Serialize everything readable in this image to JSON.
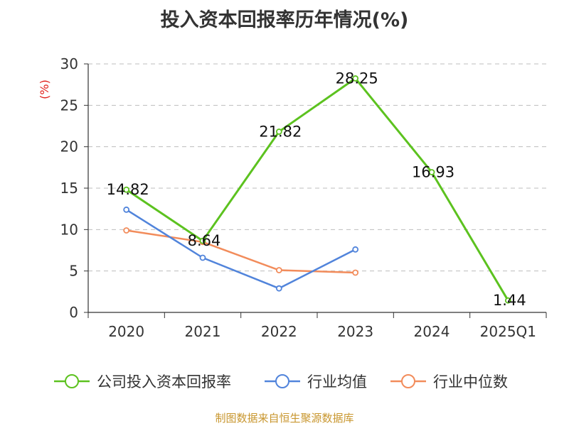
{
  "chart_data": {
    "type": "line",
    "title": "投入资本回报率历年情况(%)",
    "ylabel": "(%)",
    "categories": [
      "2020",
      "2021",
      "2022",
      "2023",
      "2024",
      "2025Q1"
    ],
    "ylim": [
      0,
      30
    ],
    "yticks": [
      0,
      5,
      10,
      15,
      20,
      25,
      30
    ],
    "grid": true,
    "legend_position": "bottom",
    "series": [
      {
        "name": "公司投入资本回报率",
        "color": "#5cc21f",
        "values": [
          14.82,
          8.64,
          21.82,
          28.25,
          16.93,
          1.44
        ],
        "labels": [
          "14.82",
          "8.64",
          "21.82",
          "28.25",
          "16.93",
          "1.44"
        ]
      },
      {
        "name": "行业均值",
        "color": "#5184db",
        "values": [
          12.4,
          6.6,
          2.9,
          7.6,
          null,
          null
        ],
        "labels": []
      },
      {
        "name": "行业中位数",
        "color": "#f28c5b",
        "values": [
          9.9,
          8.5,
          5.1,
          4.8,
          null,
          null
        ],
        "labels": []
      }
    ]
  },
  "footer": "制图数据来自恒生聚源数据库"
}
